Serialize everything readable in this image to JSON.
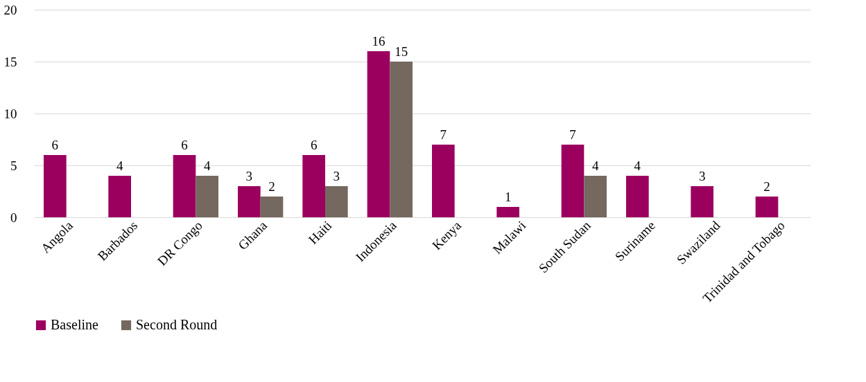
{
  "chart_data": {
    "type": "bar",
    "categories": [
      "Angola",
      "Barbados",
      "DR Congo",
      "Ghana",
      "Haiti",
      "Indonesia",
      "Kenya",
      "Malawi",
      "South Sudan",
      "Suriname",
      "Swaziland",
      "Trinidad and Tobago"
    ],
    "series": [
      {
        "name": "Baseline",
        "color": "#9b005f",
        "values": [
          6,
          4,
          6,
          3,
          6,
          16,
          7,
          1,
          7,
          4,
          3,
          2
        ]
      },
      {
        "name": "Second Round",
        "color": "#74685f",
        "values": [
          null,
          null,
          4,
          2,
          3,
          15,
          null,
          null,
          4,
          null,
          null,
          null
        ]
      }
    ],
    "ylim": [
      0,
      20
    ],
    "yticks": [
      0,
      5,
      10,
      15,
      20
    ],
    "grid": "y",
    "legend": "bottom",
    "data_labels": true
  }
}
